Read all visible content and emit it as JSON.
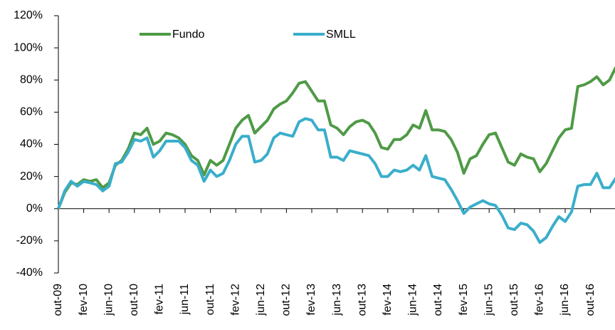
{
  "chart_data": {
    "type": "line",
    "categories": [
      "out-09",
      null,
      null,
      null,
      "fev-10",
      null,
      null,
      null,
      "jun-10",
      null,
      null,
      null,
      "out-10",
      null,
      null,
      null,
      "fev-11",
      null,
      null,
      null,
      "jun-11",
      null,
      null,
      null,
      "out-11",
      null,
      null,
      null,
      "fev-12",
      null,
      null,
      null,
      "jun-12",
      null,
      null,
      null,
      "out-12",
      null,
      null,
      null,
      "fev-13",
      null,
      null,
      null,
      "jun-13",
      null,
      null,
      null,
      "out-13",
      null,
      null,
      null,
      "fev-14",
      null,
      null,
      null,
      "jun-14",
      null,
      null,
      null,
      "out-14",
      null,
      null,
      null,
      "fev-15",
      null,
      null,
      null,
      "jun-15",
      null,
      null,
      null,
      "out-15",
      null,
      null,
      null,
      "fev-16",
      null,
      null,
      null,
      "jun-16",
      null,
      null,
      null,
      "out-16",
      null,
      null,
      null,
      null
    ],
    "series": [
      {
        "name": "Fundo",
        "color": "#4f9a46",
        "values": [
          0,
          10,
          16,
          15,
          18,
          17,
          18,
          13,
          16,
          27,
          30,
          37,
          47,
          46,
          50,
          40,
          42,
          47,
          46,
          44,
          40,
          33,
          30,
          21,
          30,
          27,
          30,
          40,
          50,
          55,
          58,
          47,
          51,
          55,
          62,
          65,
          67,
          72,
          78,
          79,
          73,
          67,
          67,
          52,
          50,
          46,
          51,
          54,
          55,
          53,
          47,
          38,
          37,
          43,
          43,
          46,
          52,
          50,
          61,
          49,
          49,
          48,
          43,
          35,
          22,
          31,
          33,
          40,
          46,
          47,
          38,
          29,
          27,
          34,
          32,
          31,
          23,
          28,
          36,
          44,
          49,
          50,
          76,
          77,
          79,
          82,
          77,
          80,
          88
        ]
      },
      {
        "name": "SMLL",
        "color": "#3aaecb",
        "values": [
          0,
          11,
          17,
          14,
          17,
          16,
          15,
          11,
          14,
          28,
          29,
          35,
          43,
          42,
          44,
          32,
          36,
          42,
          42,
          42,
          38,
          30,
          27,
          17,
          24,
          20,
          22,
          30,
          40,
          45,
          45,
          29,
          30,
          34,
          44,
          47,
          46,
          45,
          54,
          56,
          55,
          49,
          49,
          32,
          32,
          30,
          36,
          35,
          34,
          33,
          28,
          20,
          20,
          24,
          23,
          24,
          27,
          24,
          33,
          20,
          19,
          18,
          12,
          5,
          -3,
          1,
          3,
          5,
          3,
          2,
          -4,
          -12,
          -13,
          -9,
          -10,
          -14,
          -21,
          -18,
          -11,
          -5,
          -8,
          -2,
          14,
          15,
          15,
          22,
          13,
          13,
          19
        ]
      }
    ],
    "ylim": [
      -40,
      120
    ],
    "yticks": [
      {
        "value": -40,
        "label": "-40%"
      },
      {
        "value": -20,
        "label": "-20%"
      },
      {
        "value": 0,
        "label": "0%"
      },
      {
        "value": 20,
        "label": "20%"
      },
      {
        "value": 40,
        "label": "40%"
      },
      {
        "value": 60,
        "label": "60%"
      },
      {
        "value": 80,
        "label": "80%"
      },
      {
        "value": 100,
        "label": "100%"
      },
      {
        "value": 120,
        "label": "120%"
      }
    ],
    "legend": "top"
  }
}
